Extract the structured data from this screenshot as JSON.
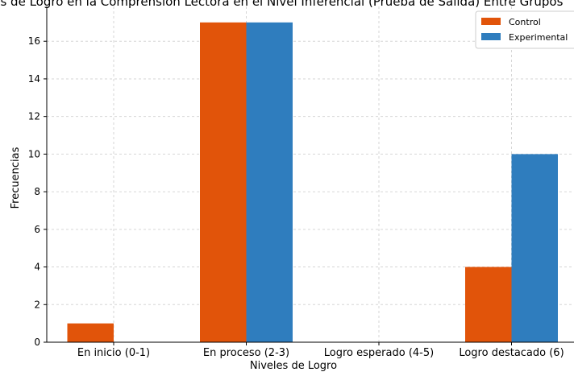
{
  "chart_data": {
    "type": "bar",
    "title": "Niveles de Logro en la Comprensión Lectora en el Nivel Inferencial (Prueba de Salida) Entre Grupos",
    "xlabel": "Niveles de Logro",
    "ylabel": "Frecuencias",
    "categories": [
      "En inicio (0-1)",
      "En proceso (2-3)",
      "Logro esperado (4-5)",
      "Logro destacado (6)"
    ],
    "series": [
      {
        "name": "Control",
        "values": [
          1,
          17,
          0,
          4
        ],
        "color": "#e1540a"
      },
      {
        "name": "Experimental",
        "values": [
          0,
          17,
          0,
          10
        ],
        "color": "#2f7dbe"
      }
    ],
    "ylim": [
      0,
      17.85
    ],
    "yticks": [
      0,
      2,
      4,
      6,
      8,
      10,
      12,
      14,
      16
    ],
    "grid": true,
    "legend_position": "top-right"
  }
}
